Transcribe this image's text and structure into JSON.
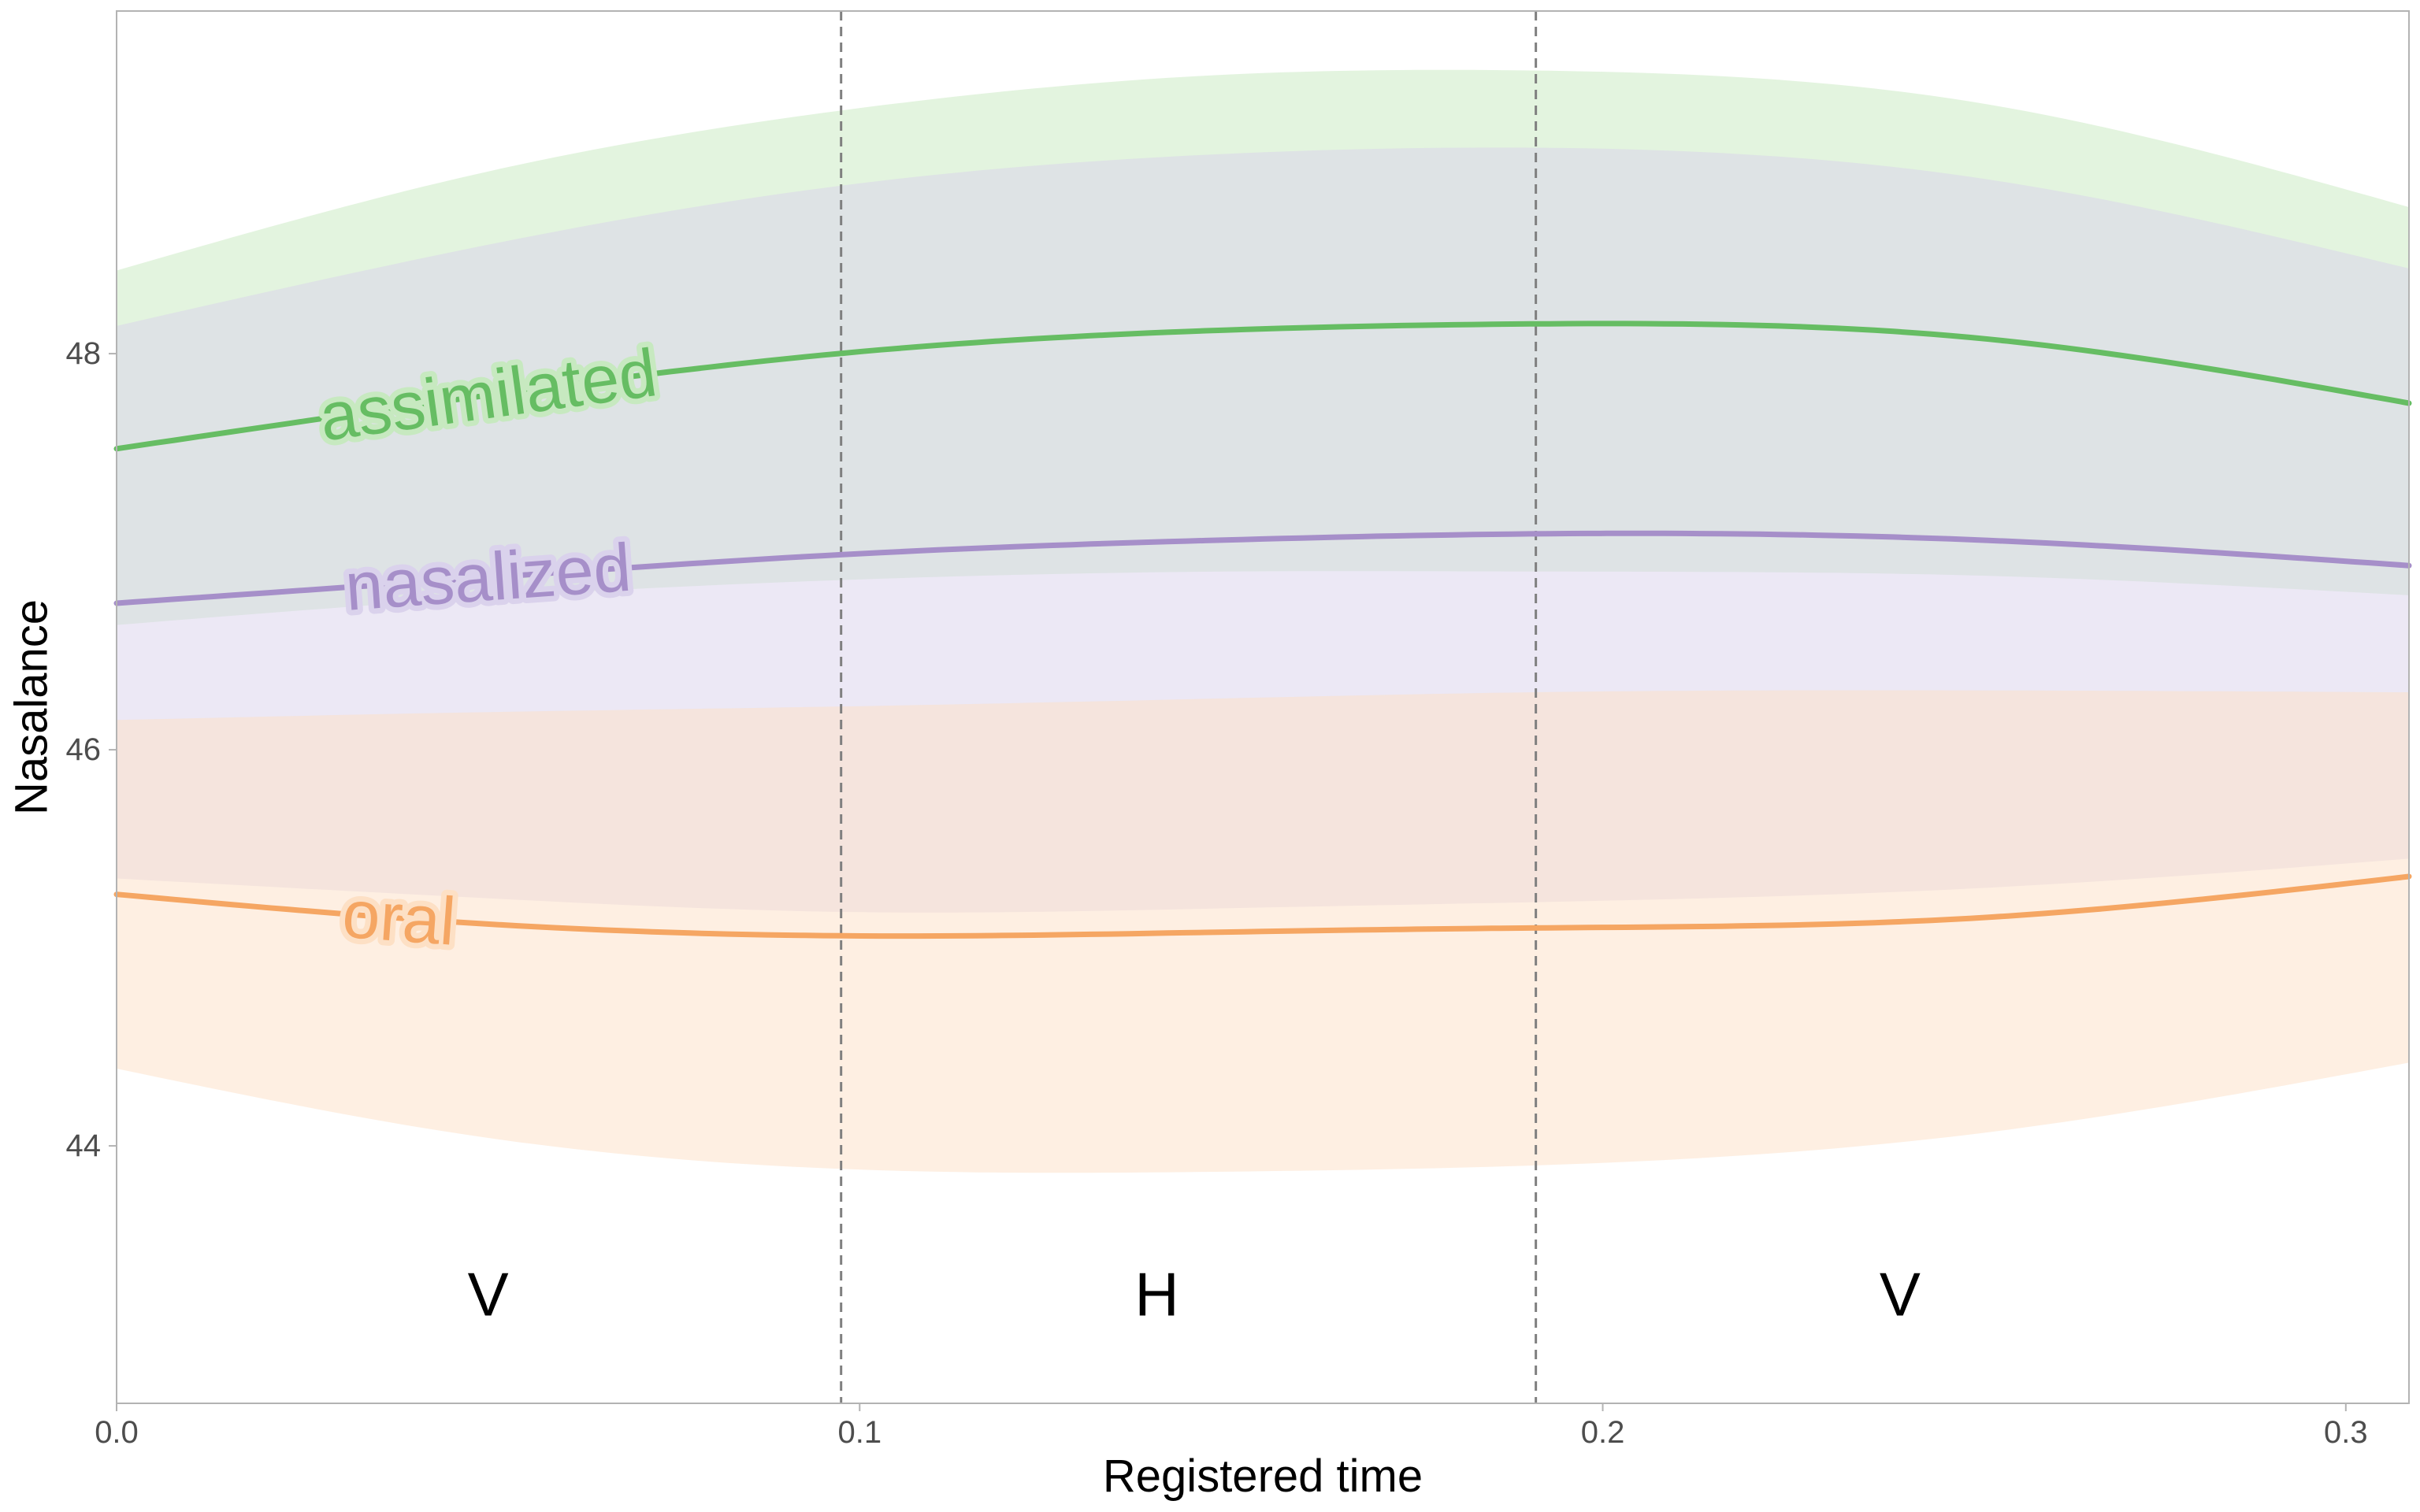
{
  "chart_data": {
    "type": "line",
    "title": "",
    "xlabel": "Registered time",
    "ylabel": "Nasalance",
    "xlim": [
      0.0,
      0.3085
    ],
    "ylim": [
      42.7,
      49.73
    ],
    "x_ticks": [
      0.0,
      0.1,
      0.2,
      0.3
    ],
    "x_tick_labels": [
      "0.0",
      "0.1",
      "0.2",
      "0.3"
    ],
    "y_ticks": [
      44,
      46,
      48
    ],
    "y_tick_labels": [
      "44",
      "46",
      "48"
    ],
    "grid": false,
    "legend": "none (direct labels on lines)",
    "vlines": [
      0.0975,
      0.191
    ],
    "segment_labels": [
      {
        "text": "V",
        "x": 0.05,
        "y": 43.25
      },
      {
        "text": "H",
        "x": 0.14,
        "y": 43.25
      },
      {
        "text": "V",
        "x": 0.24,
        "y": 43.25
      }
    ],
    "series": [
      {
        "name": "assimilated",
        "color": "#66bd63",
        "band_color": "#c7e9c0",
        "label_x": 0.05,
        "x": [
          0.0,
          0.05,
          0.1,
          0.15,
          0.19,
          0.25,
          0.3085
        ],
        "y": [
          47.52,
          47.79,
          48.01,
          48.12,
          48.15,
          48.08,
          47.75
        ],
        "lower": [
          46.63,
          46.77,
          46.86,
          46.9,
          46.9,
          46.88,
          46.78
        ],
        "upper": [
          48.42,
          48.92,
          49.24,
          49.41,
          49.43,
          49.27,
          48.74
        ]
      },
      {
        "name": "nasalized",
        "color": "#a68fc9",
        "band_color": "#dad2ec",
        "label_x": 0.05,
        "x": [
          0.0,
          0.05,
          0.1,
          0.15,
          0.19,
          0.25,
          0.3085
        ],
        "y": [
          46.74,
          46.87,
          46.99,
          47.06,
          47.09,
          47.06,
          46.93
        ],
        "lower": [
          45.35,
          45.25,
          45.18,
          45.2,
          45.23,
          45.3,
          45.45
        ],
        "upper": [
          48.14,
          48.55,
          48.86,
          49.01,
          49.04,
          48.89,
          48.43
        ]
      },
      {
        "name": "oral",
        "color": "#f5a663",
        "band_color": "#fde0c5",
        "label_x": 0.038,
        "x": [
          0.0,
          0.05,
          0.1,
          0.15,
          0.19,
          0.25,
          0.3085
        ],
        "y": [
          45.27,
          45.12,
          45.06,
          45.08,
          45.1,
          45.15,
          45.36
        ],
        "lower": [
          44.39,
          44.04,
          43.88,
          43.87,
          43.9,
          44.06,
          44.42
        ],
        "upper": [
          46.15,
          46.19,
          46.22,
          46.26,
          46.29,
          46.3,
          46.29
        ]
      }
    ]
  }
}
